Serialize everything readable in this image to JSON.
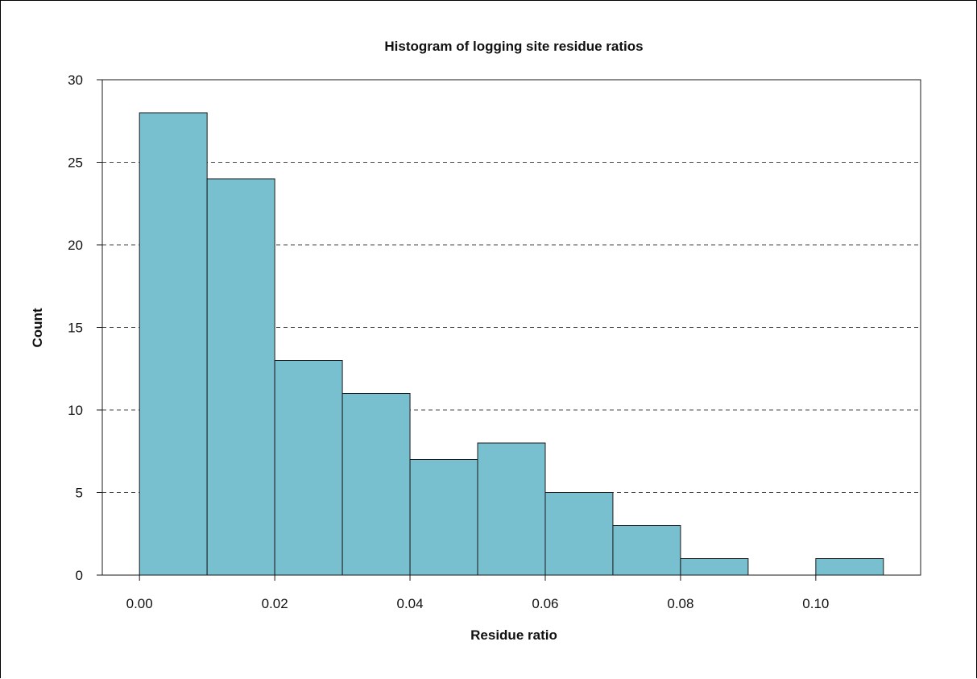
{
  "chart_data": {
    "type": "bar",
    "title": "Histogram of logging site residue ratios",
    "xlabel": "Residue ratio",
    "ylabel": "Count",
    "bin_edges": [
      0.0,
      0.01,
      0.02,
      0.03,
      0.04,
      0.05,
      0.06,
      0.07,
      0.08,
      0.09,
      0.1,
      0.11
    ],
    "values": [
      28,
      24,
      13,
      11,
      7,
      8,
      5,
      3,
      1,
      0,
      1
    ],
    "xlim": [
      -0.0055,
      0.1155
    ],
    "ylim": [
      0,
      30
    ],
    "xticks": [
      "0.00",
      "0.02",
      "0.04",
      "0.06",
      "0.08",
      "0.10"
    ],
    "yticks": [
      "0",
      "5",
      "10",
      "15",
      "20",
      "25",
      "30"
    ],
    "grid": "horizontal-dashed",
    "colors": {
      "bar_fill": "#78bfcf",
      "bar_stroke": "#1a1a1a",
      "grid": "#444444"
    }
  }
}
